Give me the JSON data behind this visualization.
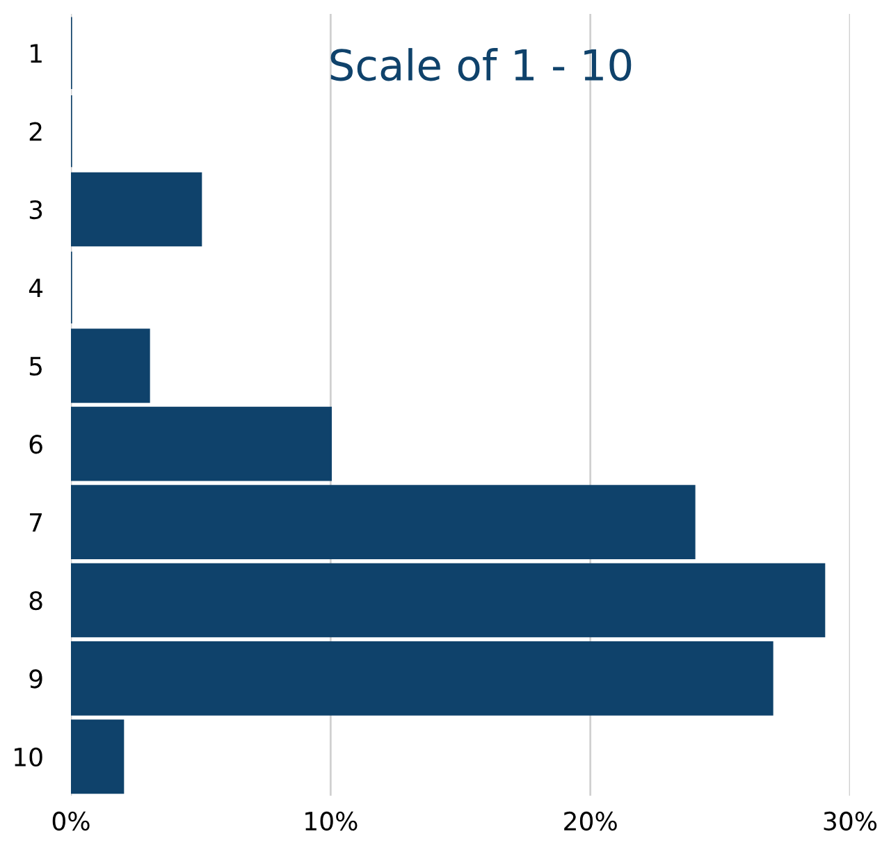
{
  "chart_data": {
    "type": "bar",
    "orientation": "horizontal",
    "title": "Scale of 1 - 10",
    "categories": [
      "1",
      "2",
      "3",
      "4",
      "5",
      "6",
      "7",
      "8",
      "9",
      "10"
    ],
    "values": [
      0,
      0,
      5,
      0,
      3,
      10,
      24,
      29,
      27,
      2
    ],
    "color": "#0f426b",
    "xlim": [
      0,
      30
    ],
    "xticks": [
      {
        "value": 0,
        "label": "0%"
      },
      {
        "value": 10,
        "label": "10%"
      },
      {
        "value": 20,
        "label": "20%"
      },
      {
        "value": 30,
        "label": "30%"
      }
    ],
    "grid": "x"
  }
}
